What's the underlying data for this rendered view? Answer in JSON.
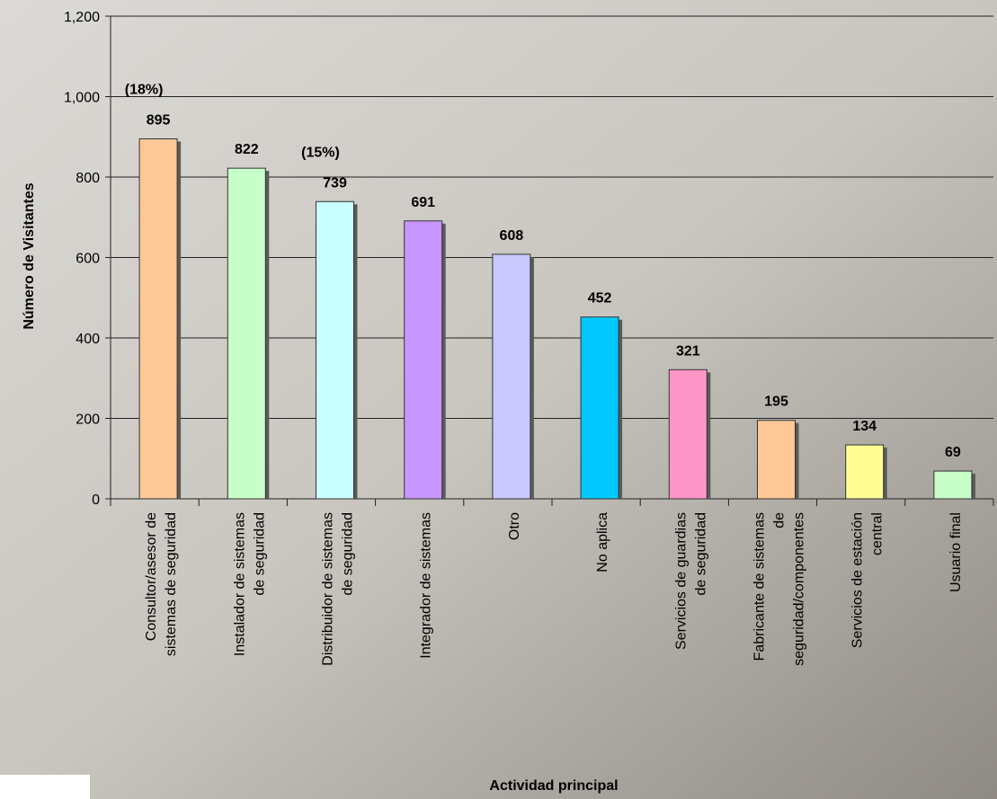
{
  "chart_data": {
    "type": "bar",
    "x_label": "Actividad principal",
    "y_label": "Número de Visitantes",
    "categories": [
      "Consultor/asesor de\nsistemas de seguridad",
      "Instalador de sistemas\nde seguridad",
      "Distribuidor de sistemas\nde seguridad",
      "Integrador de sistemas",
      "Otro",
      "No aplica",
      "Servicios de guardias\nde seguridad",
      "Fabricante de sistemas\nde\nseguridad/componentes",
      "Servicios de estación\ncentral",
      "Usuario final"
    ],
    "values": [
      895,
      822,
      739,
      691,
      608,
      452,
      321,
      195,
      134,
      69
    ],
    "percent_labels": [
      "(18%)",
      null,
      "(15%)",
      null,
      null,
      null,
      null,
      null,
      null,
      null
    ],
    "colors": [
      "#ffc896",
      "#c8ffc8",
      "#c8ffff",
      "#c896ff",
      "#c8c8ff",
      "#00c8ff",
      "#ff96c8",
      "#ffc896",
      "#ffff96",
      "#c8ffc8"
    ],
    "ylim": [
      0,
      1200
    ],
    "yticks": [
      0,
      200,
      400,
      600,
      800,
      {
        "value": 1000,
        "label": "1,000"
      },
      {
        "value": 1200,
        "label": "1,200"
      }
    ],
    "grid": true
  }
}
